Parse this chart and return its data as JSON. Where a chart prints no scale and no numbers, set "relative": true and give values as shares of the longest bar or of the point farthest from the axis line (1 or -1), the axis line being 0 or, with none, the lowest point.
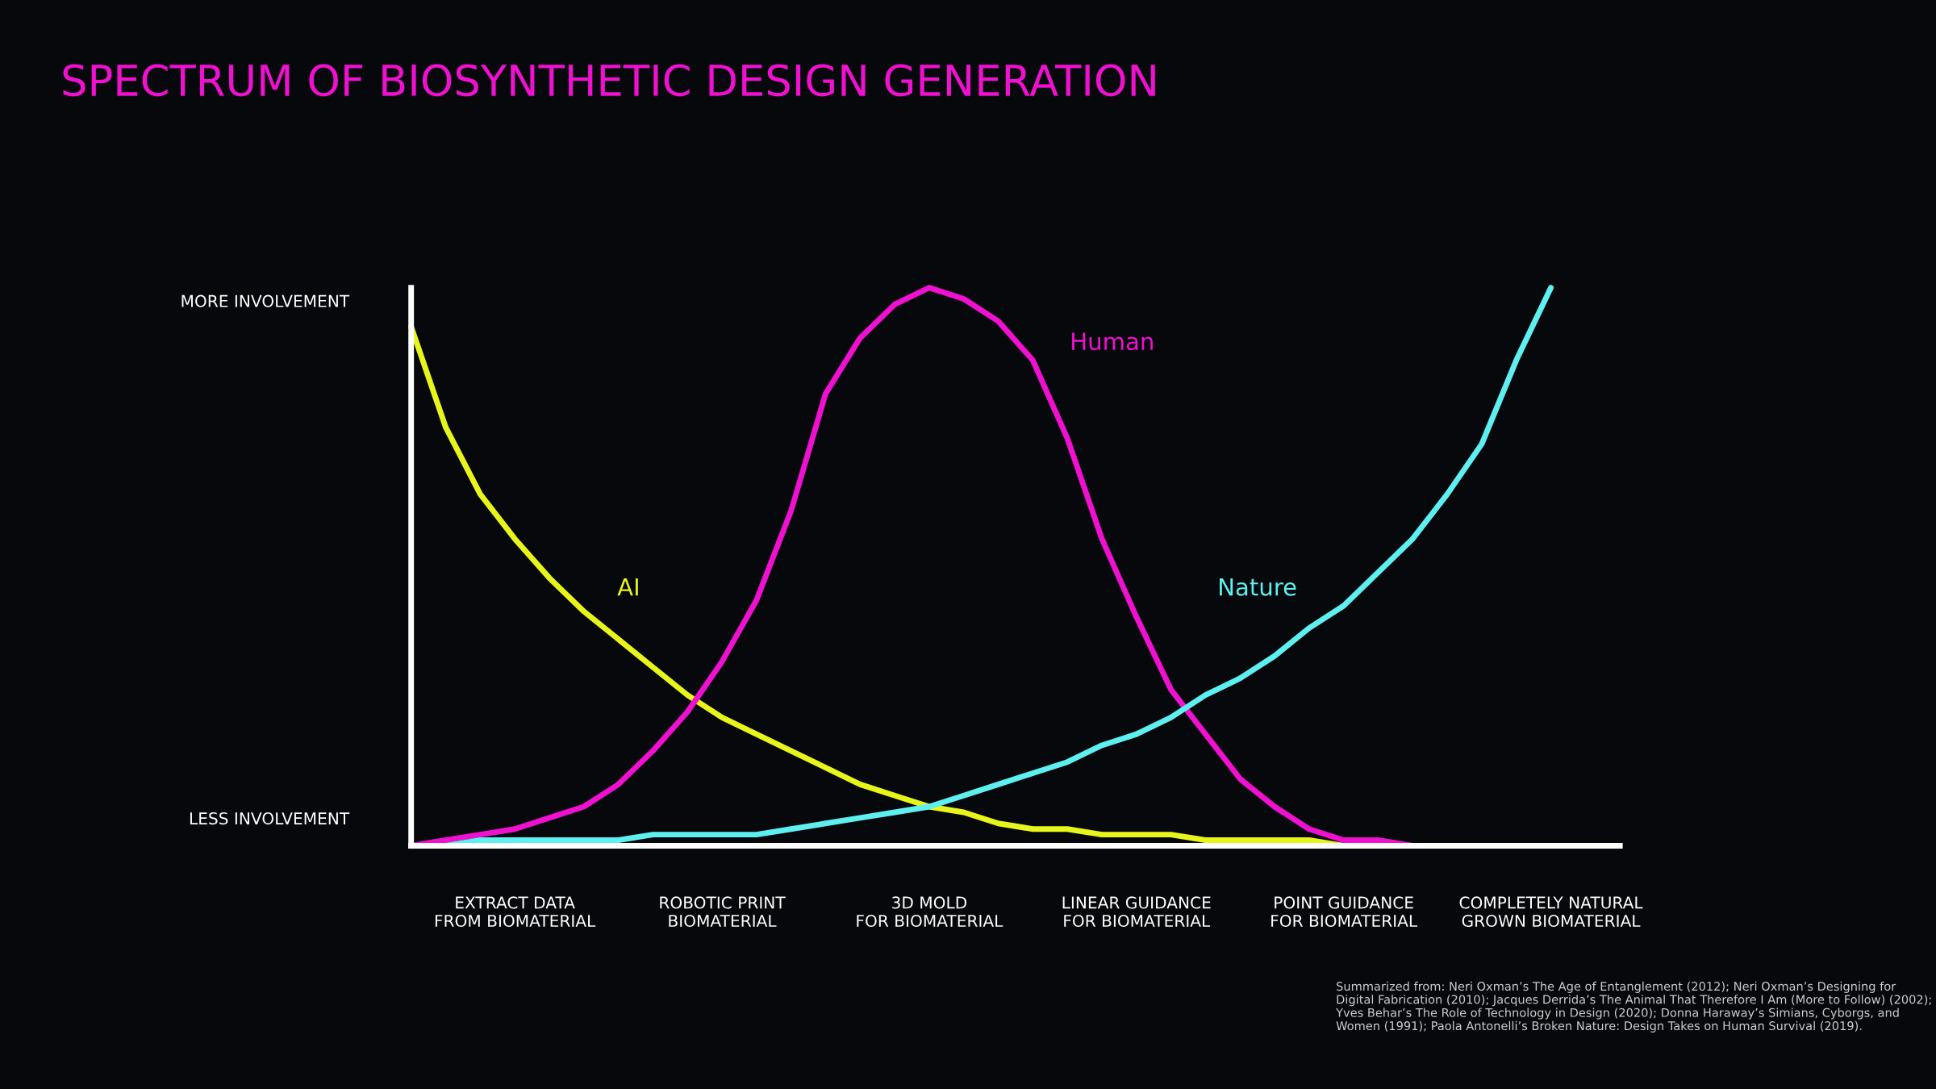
{
  "chart_data": {
    "type": "line",
    "title": "SPECTRUM OF BIOSYNTHETIC DESIGN GENERATION",
    "relative": true,
    "categories": [
      null,
      null,
      null,
      "EXTRACT DATA\nFROM BIOMATERIAL",
      null,
      null,
      null,
      null,
      null,
      "ROBOTIC PRINT\nBIOMATERIAL",
      null,
      null,
      null,
      null,
      null,
      "3D MOLD\nFOR BIOMATERIAL",
      null,
      null,
      null,
      null,
      null,
      "LINEAR GUIDANCE\nFOR BIOMATERIAL",
      null,
      null,
      null,
      null,
      null,
      "POINT GUIDANCE\nFOR BIOMATERIAL",
      null,
      null,
      null,
      null,
      null,
      "COMPLETELY NATURAL\nGROWN BIOMATERIAL",
      null,
      null
    ],
    "series": [
      {
        "name": "AI",
        "color": "#e8f51a",
        "values": [
          0.93,
          0.75,
          0.63,
          0.55,
          0.48,
          0.42,
          0.37,
          0.32,
          0.27,
          0.23,
          0.2,
          0.17,
          0.14,
          0.11,
          0.09,
          0.07,
          0.06,
          0.04,
          0.03,
          0.03,
          0.02,
          0.02,
          0.02,
          0.01,
          0.01,
          0.01,
          0.01,
          0.0,
          0.0,
          0.0,
          null,
          null,
          null,
          null,
          null,
          null
        ]
      },
      {
        "name": "Human",
        "color": "#f010d0",
        "values": [
          0.0,
          0.01,
          0.02,
          0.03,
          0.05,
          0.07,
          0.11,
          0.17,
          0.24,
          0.33,
          0.44,
          0.6,
          0.81,
          0.91,
          0.97,
          1.0,
          0.98,
          0.94,
          0.87,
          0.73,
          0.55,
          0.41,
          0.28,
          0.2,
          0.12,
          0.07,
          0.03,
          0.01,
          0.01,
          0.0,
          null,
          null,
          null,
          null,
          null,
          null
        ]
      },
      {
        "name": "Nature",
        "color": "#5ef0f0",
        "values": [
          0.0,
          0.0,
          0.01,
          0.01,
          0.01,
          0.01,
          0.01,
          0.02,
          0.02,
          0.02,
          0.02,
          0.03,
          0.04,
          0.05,
          0.06,
          0.07,
          0.09,
          0.11,
          0.13,
          0.15,
          0.18,
          0.2,
          0.23,
          0.27,
          0.3,
          0.34,
          0.39,
          0.43,
          0.49,
          0.55,
          0.63,
          0.72,
          0.87,
          1.0,
          null,
          null
        ]
      }
    ],
    "annotations": [
      "MORE INVOLVEMENT",
      "LESS INVOLVEMENT",
      "Summarized from: Neri Oxman’s The Age of Entanglement (2012); Neri Oxman’s Designing for Digital Fabrication (2010); Jacques Derrida’s The Animal That Therefore I Am (More to Follow) (2002); Yves Behar’s The Role of Technology in Design (2020); Donna Haraway’s Simians, Cyborgs, and Women (1991); Paola Antonelli’s Broken Nature: Design Takes on Human Survival (2019)."
    ],
    "line_style": "solid",
    "marker": "none",
    "grid": false,
    "legend": false
  }
}
